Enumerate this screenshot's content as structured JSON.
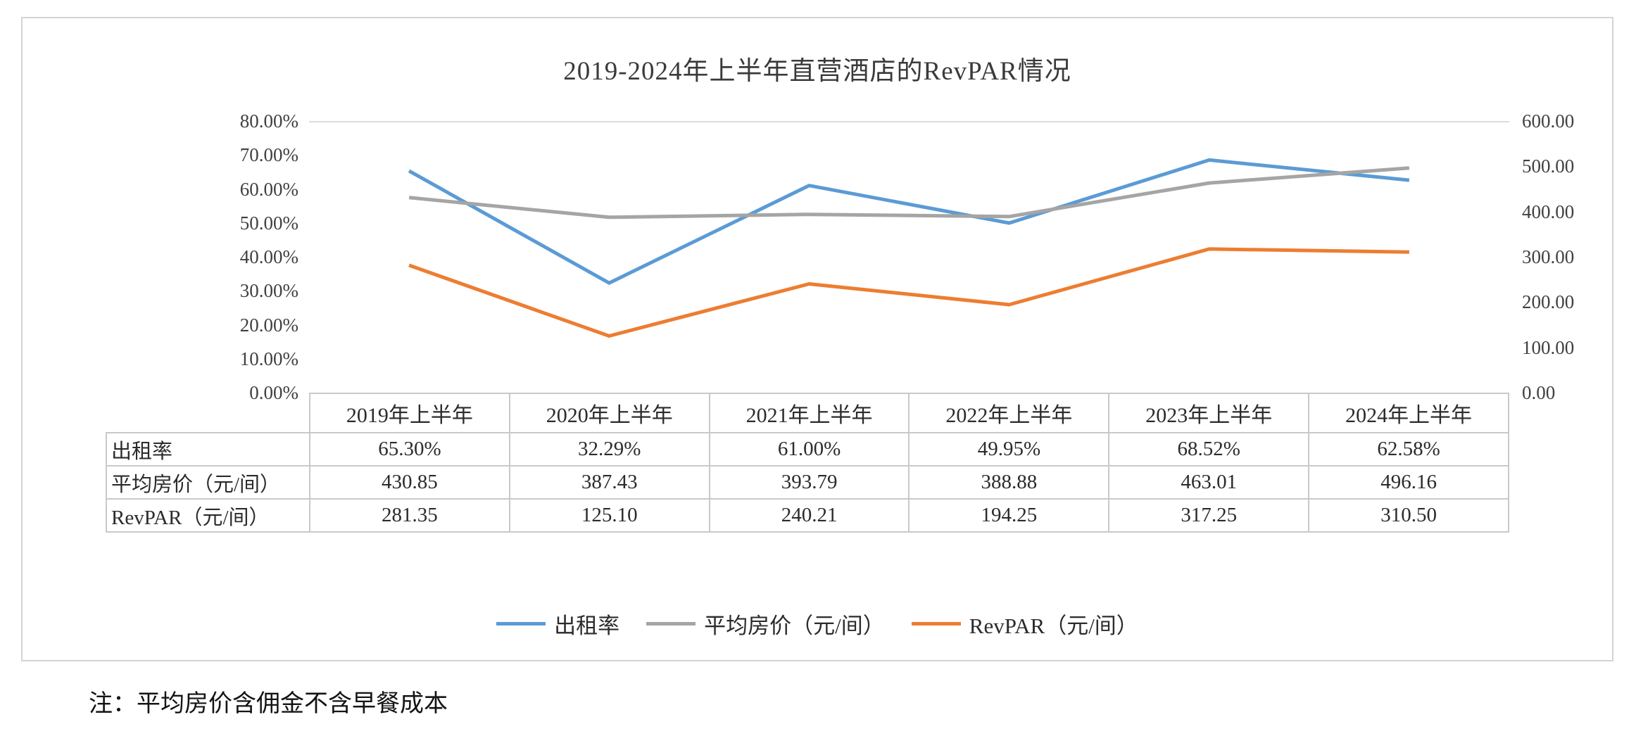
{
  "note": "注：平均房价含佣金不含早餐成本",
  "chart_data": {
    "type": "line",
    "title": "2019-2024年上半年直营酒店的RevPAR情况",
    "categories": [
      "2019年上半年",
      "2020年上半年",
      "2021年上半年",
      "2022年上半年",
      "2023年上半年",
      "2024年上半年"
    ],
    "series": [
      {
        "name": "出租率",
        "axis": "left",
        "color": "#5B9BD5",
        "values": [
          65.3,
          32.29,
          61.0,
          49.95,
          68.52,
          62.58
        ],
        "display": [
          "65.30%",
          "32.29%",
          "61.00%",
          "49.95%",
          "68.52%",
          "62.58%"
        ]
      },
      {
        "name": "平均房价（元/间）",
        "axis": "right",
        "color": "#A5A5A5",
        "values": [
          430.85,
          387.43,
          393.79,
          388.88,
          463.01,
          496.16
        ],
        "display": [
          "430.85",
          "387.43",
          "393.79",
          "388.88",
          "463.01",
          "496.16"
        ]
      },
      {
        "name": "RevPAR（元/间）",
        "axis": "right",
        "color": "#ED7D31",
        "values": [
          281.35,
          125.1,
          240.21,
          194.25,
          317.25,
          310.5
        ],
        "display": [
          "281.35",
          "125.10",
          "240.21",
          "194.25",
          "317.25",
          "310.50"
        ]
      }
    ],
    "left_axis": {
      "min": 0,
      "max": 80,
      "ticks": [
        "80.00%",
        "70.00%",
        "60.00%",
        "50.00%",
        "40.00%",
        "30.00%",
        "20.00%",
        "10.00%",
        "0.00%"
      ]
    },
    "right_axis": {
      "min": 0,
      "max": 600,
      "ticks": [
        "600.00",
        "500.00",
        "400.00",
        "300.00",
        "200.00",
        "100.00",
        "0.00"
      ]
    },
    "legend_position": "bottom",
    "grid": false,
    "data_table_shown": true
  }
}
